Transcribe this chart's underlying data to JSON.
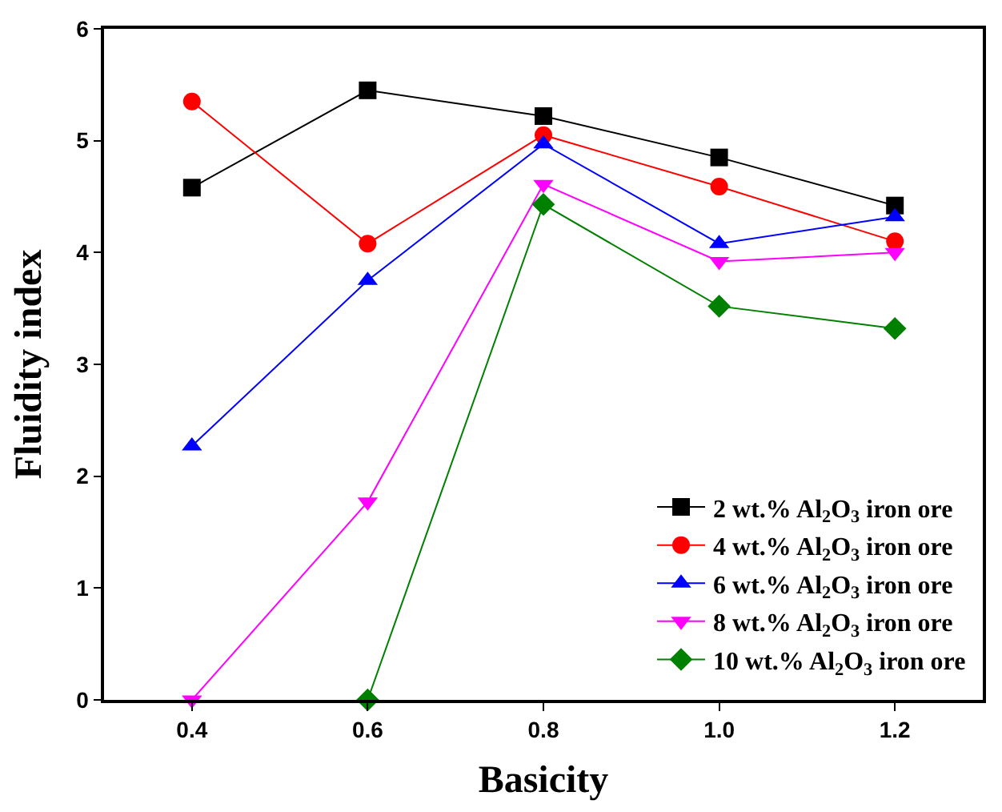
{
  "chart_data": {
    "type": "line",
    "xlabel": "Basicity",
    "ylabel": "Fluidity index",
    "x": [
      0.4,
      0.6,
      0.8,
      1.0,
      1.2
    ],
    "xlim": [
      0.3,
      1.3
    ],
    "xticks": [
      {
        "value": 0.4,
        "label": "0.4"
      },
      {
        "value": 0.6,
        "label": "0.6"
      },
      {
        "value": 0.8,
        "label": "0.8"
      },
      {
        "value": 1.0,
        "label": "1.0"
      },
      {
        "value": 1.2,
        "label": "1.2"
      }
    ],
    "ylim": [
      0,
      6
    ],
    "yticks": [
      0,
      1,
      2,
      3,
      4,
      5,
      6
    ],
    "legend": "bottom right",
    "series": [
      {
        "name": "2 wt.% Al$_{2}$O$_{3}$ iron ore",
        "color": "#000000",
        "marker": "square",
        "values": [
          4.58,
          5.45,
          5.22,
          4.85,
          4.42
        ]
      },
      {
        "name": "4 wt.% Al$_{2}$O$_{3}$ iron ore",
        "color": "#ff0000",
        "marker": "circle",
        "values": [
          5.35,
          4.08,
          5.05,
          4.59,
          4.1
        ]
      },
      {
        "name": "6 wt.% Al$_{2}$O$_{3}$ iron ore",
        "color": "#0000ff",
        "marker": "triangle",
        "values": [
          2.27,
          3.75,
          4.97,
          4.08,
          4.32
        ]
      },
      {
        "name": "8 wt.% Al$_{2}$O$_{3}$ iron ore",
        "color": "#ff00ff",
        "marker": "triangle-down",
        "values": [
          0.0,
          1.77,
          4.61,
          3.92,
          4.0
        ]
      },
      {
        "name": "10 wt.% Al$_{2}$O$_{3}$ iron ore",
        "color": "#008000",
        "marker": "diamond",
        "values": [
          null,
          0.0,
          4.43,
          3.52,
          3.32
        ]
      }
    ]
  }
}
